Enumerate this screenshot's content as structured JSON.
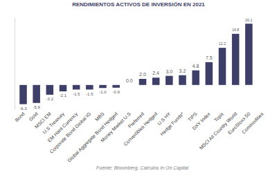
{
  "chart_data": {
    "type": "bar",
    "title": "RENDIMIENTOS ACTIVOS DE INVERSIÓN EN 2021",
    "categories": [
      "Bond",
      "Gold",
      "MSCI EM",
      "U.S Treasury",
      "EM Hard Currency",
      "Corporate Bond Global IG",
      "MBS",
      "Global Aggregate Bond Hedged",
      "Money Market U.S",
      "Preferred",
      "Convertibles Hedged",
      "U.S HY",
      "Hedge Funds*",
      "TIPS",
      "DXY Index",
      "Topix",
      "MSCI All Country World",
      "EuroStoxx 50",
      "Commodities"
    ],
    "values": [
      -6.3,
      -5.9,
      -3.2,
      -2.1,
      -1.5,
      -1.5,
      -1.0,
      -0.9,
      0.0,
      2.0,
      2.4,
      3.0,
      3.2,
      4.8,
      7.5,
      12.2,
      16.8,
      20.1,
      null
    ],
    "value_labels": [
      "-6.3",
      "-5.9",
      "-3.2",
      "-2.1",
      "-1.5",
      "-1.5",
      "-1.0",
      "-0.9",
      "0.0",
      "2.0",
      "2.4",
      "3.0",
      "3.2",
      "4.8",
      "7.5",
      "12.2",
      "16.8",
      "20.1",
      null
    ],
    "color": "#3d3f68",
    "ylim": [
      -8,
      22
    ],
    "yticks": [],
    "grid": false,
    "data_labels": true,
    "tick_labels": "x",
    "annotations": [
      "Fuente: Bloomberg. Calculos In On Capital"
    ]
  }
}
